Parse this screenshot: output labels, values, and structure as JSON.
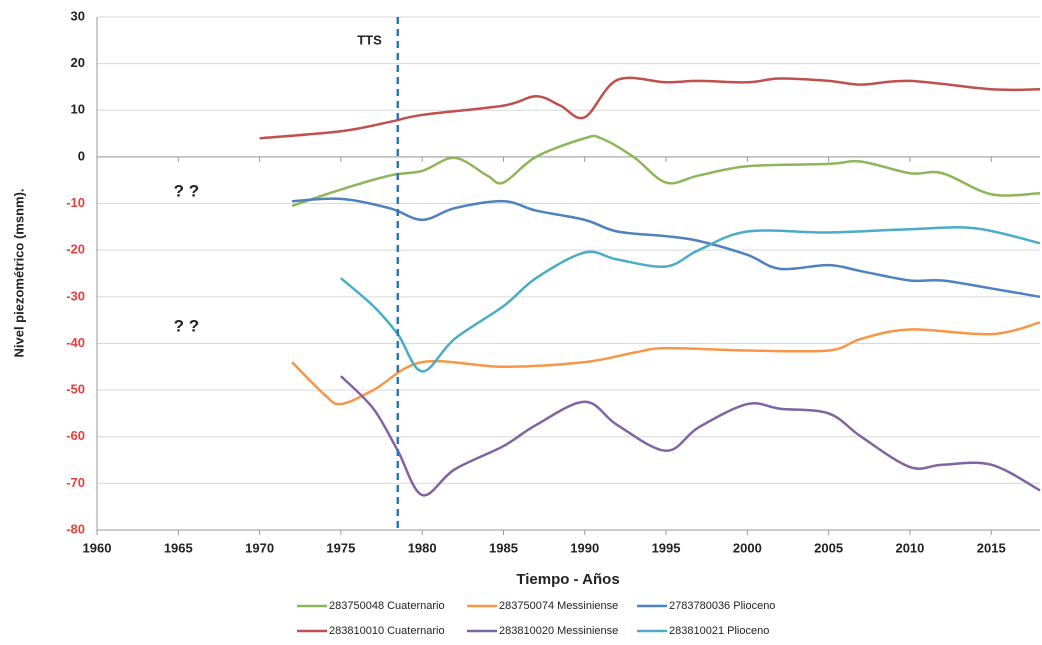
{
  "chart_data": {
    "type": "line",
    "ylabel": "Nivel piezométrico (msnm).",
    "xlabel": "Tiempo - Años",
    "xlim": [
      1960,
      2018
    ],
    "xticks": [
      1960,
      1965,
      1970,
      1975,
      1980,
      1985,
      1990,
      1995,
      2000,
      2005,
      2010,
      2015
    ],
    "ylim": [
      -80,
      30
    ],
    "yticks": [
      -80,
      -70,
      -60,
      -50,
      -40,
      -30,
      -20,
      -10,
      0,
      10,
      20,
      30
    ],
    "grid": true,
    "negative_tick_color": "#e8413c",
    "vline": {
      "x": 1978.5,
      "label": "TTS",
      "color": "#2e75b6"
    },
    "annotations": [
      {
        "text": "? ?",
        "x": 1965.5,
        "y": -7.5
      },
      {
        "text": "? ?",
        "x": 1965.5,
        "y": -36.5
      }
    ],
    "legend": "bottom",
    "series": [
      {
        "name": "283750048 Cuaternario",
        "color": "#8db55a",
        "x": [
          1972,
          1975,
          1978,
          1980,
          1982,
          1984,
          1985,
          1987,
          1990,
          1991,
          1993,
          1995,
          1997,
          2000,
          2005,
          2007,
          2010,
          2012,
          2015,
          2018
        ],
        "values": [
          -10.5,
          -7,
          -4,
          -3,
          -0.2,
          -4,
          -5.5,
          0,
          4,
          4,
          0,
          -5.5,
          -4,
          -2,
          -1.5,
          -1,
          -3.5,
          -3.5,
          -8,
          -7.8
        ]
      },
      {
        "name": "283750074 Messiniense",
        "color": "#f79646",
        "x": [
          1972,
          1974,
          1975,
          1977,
          1980,
          1985,
          1990,
          1993,
          1995,
          2000,
          2005,
          2007,
          2010,
          2015,
          2018
        ],
        "values": [
          -44,
          -51,
          -53,
          -50,
          -44,
          -45,
          -44,
          -42,
          -41,
          -41.5,
          -41.5,
          -39,
          -37,
          -38,
          -35.5
        ]
      },
      {
        "name": "2783780036 Plioceno",
        "color": "#4f81bd",
        "x": [
          1972,
          1975,
          1978,
          1980,
          1982,
          1985,
          1987,
          1990,
          1992,
          1995,
          1997,
          2000,
          2002,
          2005,
          2007,
          2010,
          2012,
          2015,
          2018
        ],
        "values": [
          -9.5,
          -9,
          -11,
          -13.5,
          -11,
          -9.5,
          -11.5,
          -13.5,
          -16,
          -17,
          -18,
          -21,
          -24,
          -23.2,
          -24.5,
          -26.5,
          -26.5,
          -28.2,
          -30
        ]
      },
      {
        "name": "283810010 Cuaternario",
        "color": "#c0504d",
        "x": [
          1970,
          1975,
          1978,
          1980,
          1985,
          1987,
          1988.5,
          1990,
          1992,
          1995,
          1997,
          2000,
          2002,
          2005,
          2007,
          2010,
          2015,
          2018
        ],
        "values": [
          4,
          5.5,
          7.5,
          9,
          11,
          13,
          11,
          8.5,
          16.5,
          16,
          16.3,
          16,
          16.8,
          16.3,
          15.5,
          16.3,
          14.5,
          14.5
        ]
      },
      {
        "name": "283810020 Messiniense",
        "color": "#8064a2",
        "x": [
          1975,
          1977,
          1978.5,
          1980,
          1982,
          1985,
          1987,
          1990,
          1992,
          1995,
          1997,
          2000,
          2002,
          2005,
          2007,
          2010,
          2012,
          2015,
          2018
        ],
        "values": [
          -47,
          -54,
          -63,
          -72.5,
          -67,
          -62,
          -57.5,
          -52.5,
          -57.5,
          -63,
          -58,
          -53,
          -54,
          -55,
          -60,
          -66.5,
          -66,
          -66,
          -71.5
        ]
      },
      {
        "name": "283810021 Plioceno",
        "color": "#4bacc6",
        "x": [
          1975,
          1977,
          1978.5,
          1980,
          1982,
          1985,
          1987,
          1990,
          1992,
          1995,
          1997,
          2000,
          2005,
          2010,
          2014,
          2018
        ],
        "values": [
          -26,
          -32,
          -38,
          -46,
          -39,
          -32,
          -26,
          -20.5,
          -22,
          -23.5,
          -20,
          -16,
          -16.2,
          -15.5,
          -15.3,
          -18.5
        ]
      }
    ]
  }
}
